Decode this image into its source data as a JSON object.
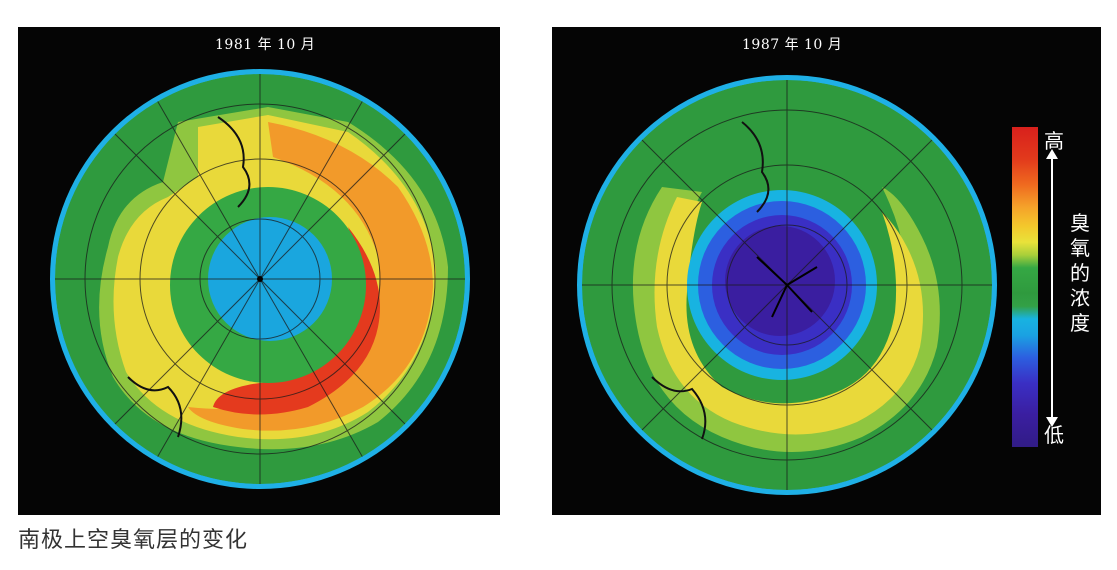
{
  "left_map": {
    "title": "1981 年 10 月"
  },
  "right_map": {
    "title": "1987 年 10 月"
  },
  "legend": {
    "high": "高",
    "low": "低",
    "label": "臭氧的浓度",
    "colors": [
      "#d8201c",
      "#ef6a1f",
      "#f3c82c",
      "#35a844",
      "#18b3e1",
      "#2c5fe0",
      "#311c86"
    ]
  },
  "caption": "南极上空臭氧层的变化"
}
